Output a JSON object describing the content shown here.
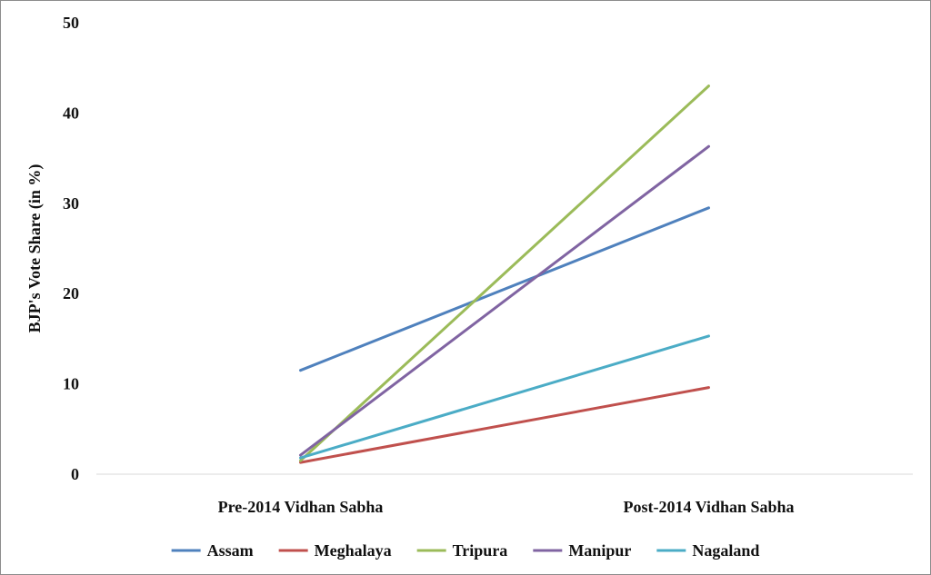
{
  "chart_data": {
    "type": "line",
    "title": "",
    "xlabel": "",
    "ylabel": "BJP's Vote Share (in %)",
    "categories": [
      "Pre-2014 Vidhan Sabha",
      "Post-2014 Vidhan Sabha"
    ],
    "ylim": [
      0,
      50
    ],
    "yticks": [
      "0",
      "10",
      "20",
      "30",
      "40",
      "50"
    ],
    "grid": false,
    "legend_position": "bottom",
    "series": [
      {
        "name": "Assam",
        "color": "#4f81bd",
        "values": [
          11.5,
          29.5
        ]
      },
      {
        "name": "Meghalaya",
        "color": "#c0504d",
        "values": [
          1.3,
          9.6
        ]
      },
      {
        "name": "Tripura",
        "color": "#9bbb59",
        "values": [
          1.5,
          43.0
        ]
      },
      {
        "name": "Manipur",
        "color": "#8064a2",
        "values": [
          2.1,
          36.3
        ]
      },
      {
        "name": "Nagaland",
        "color": "#4bacc6",
        "values": [
          1.8,
          15.3
        ]
      }
    ]
  }
}
